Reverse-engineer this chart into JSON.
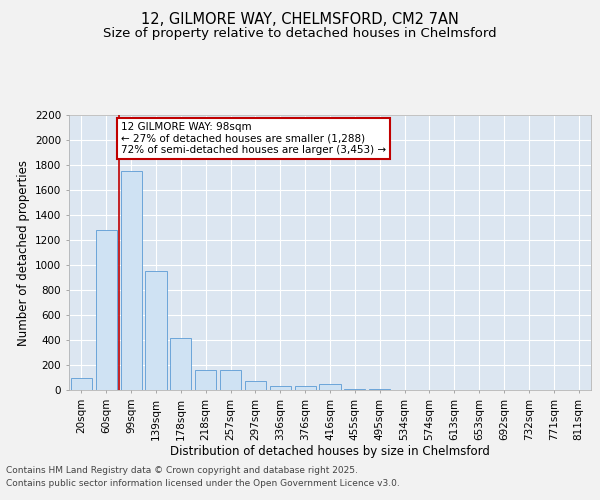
{
  "title_line1": "12, GILMORE WAY, CHELMSFORD, CM2 7AN",
  "title_line2": "Size of property relative to detached houses in Chelmsford",
  "xlabel": "Distribution of detached houses by size in Chelmsford",
  "ylabel": "Number of detached properties",
  "categories": [
    "20sqm",
    "60sqm",
    "99sqm",
    "139sqm",
    "178sqm",
    "218sqm",
    "257sqm",
    "297sqm",
    "336sqm",
    "376sqm",
    "416sqm",
    "455sqm",
    "495sqm",
    "534sqm",
    "574sqm",
    "613sqm",
    "653sqm",
    "692sqm",
    "732sqm",
    "771sqm",
    "811sqm"
  ],
  "values": [
    100,
    1280,
    1750,
    950,
    415,
    160,
    160,
    75,
    30,
    30,
    50,
    5,
    5,
    3,
    2,
    2,
    2,
    1,
    1,
    1,
    1
  ],
  "bar_color": "#cfe2f3",
  "bar_edge_color": "#5b9bd5",
  "vline_color": "#c00000",
  "annotation_text": "12 GILMORE WAY: 98sqm\n← 27% of detached houses are smaller (1,288)\n72% of semi-detached houses are larger (3,453) →",
  "annotation_box_color": "#c00000",
  "ylim": [
    0,
    2200
  ],
  "yticks": [
    0,
    200,
    400,
    600,
    800,
    1000,
    1200,
    1400,
    1600,
    1800,
    2000,
    2200
  ],
  "plot_bg_color": "#dce6f1",
  "grid_color": "#ffffff",
  "fig_bg_color": "#f2f2f2",
  "footer_line1": "Contains HM Land Registry data © Crown copyright and database right 2025.",
  "footer_line2": "Contains public sector information licensed under the Open Government Licence v3.0.",
  "title_fontsize": 10.5,
  "subtitle_fontsize": 9.5,
  "axis_label_fontsize": 8.5,
  "tick_fontsize": 7.5,
  "annotation_fontsize": 7.5,
  "footer_fontsize": 6.5,
  "vline_x_index": 2
}
